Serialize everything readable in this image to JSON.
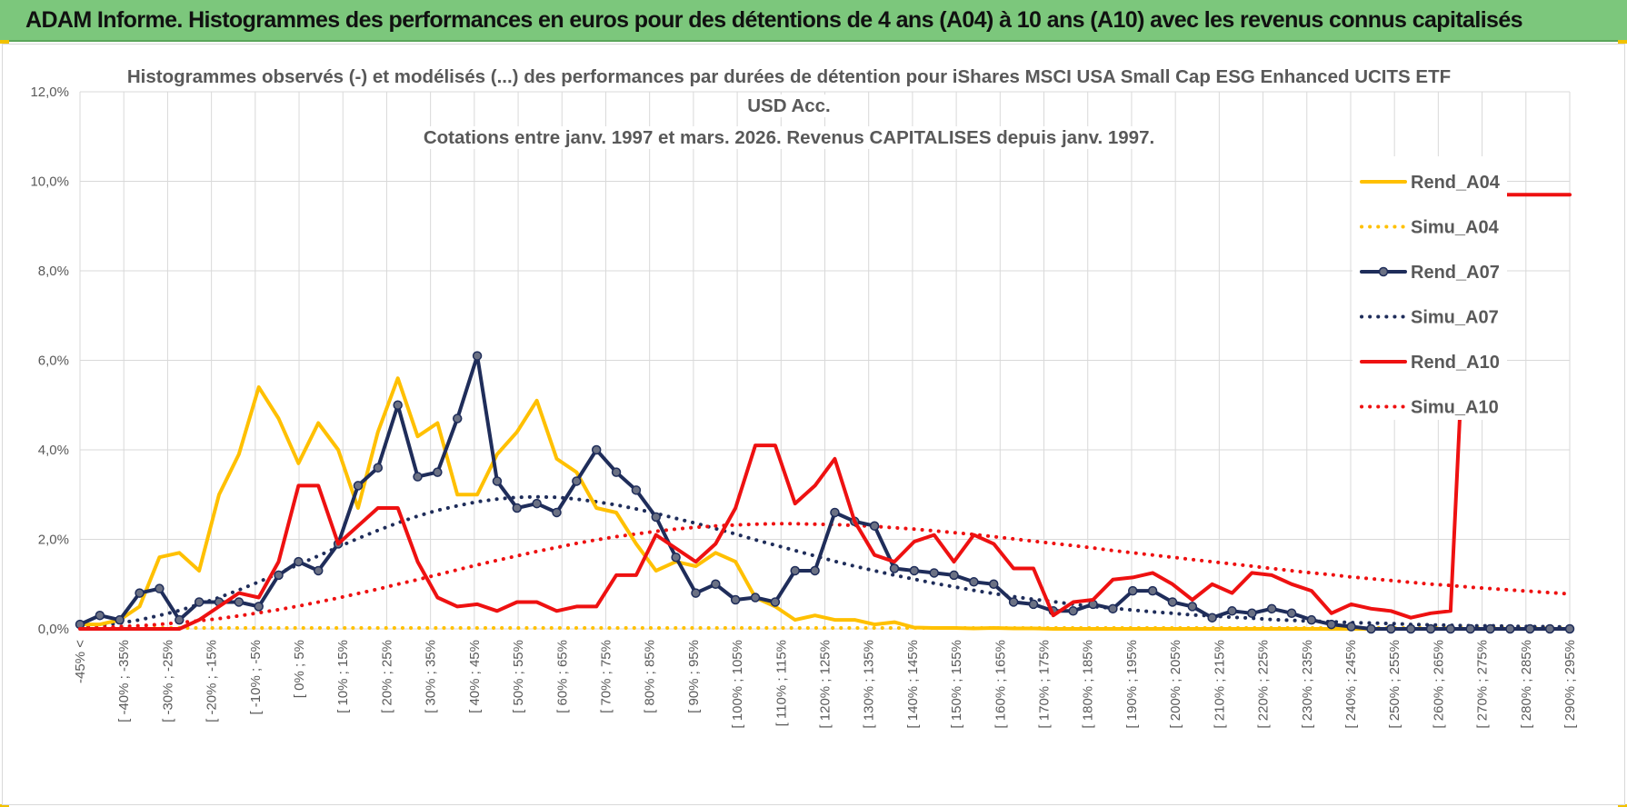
{
  "banner": {
    "title": "ADAM Informe. Histogrammes des performances en euros pour des détentions de 4 ans (A04) à 10 ans (A10) avec les revenus connus capitalisés"
  },
  "chart_data": {
    "type": "line",
    "title_lines": [
      "Histogrammes observés (-) et modélisés (...) des performances par durées de détention pour iShares MSCI USA Small Cap ESG Enhanced UCITS ETF",
      "USD Acc.",
      "Cotations entre janv. 1997 et mars. 2026. Revenus CAPITALISES depuis janv. 1997."
    ],
    "ylim": [
      0,
      12
    ],
    "y_ticks": [
      "0,0%",
      "2,0%",
      "4,0%",
      "6,0%",
      "8,0%",
      "10,0%",
      "12,0%"
    ],
    "grid": true,
    "legend_position": "right",
    "x_tick_labels": [
      "-45% <",
      "[ -40% ; -35%",
      "[ -30% ; -25%",
      "[ -20% ; -15%",
      "[ -10% ; -5%",
      "[ 0% ; 5%",
      "[ 10% ; 15%",
      "[ 20% ; 25%",
      "[ 30% ; 35%",
      "[ 40% ; 45%",
      "[ 50% ; 55%",
      "[ 60% ; 65%",
      "[ 70% ; 75%",
      "[ 80% ; 85%",
      "[ 90% ; 95%",
      "[ 100% ; 105%",
      "[ 110% ; 115%",
      "[ 120% ; 125%",
      "[ 130% ; 135%",
      "[ 140% ; 145%",
      "[ 150% ; 155%",
      "[ 160% ; 165%",
      "[ 170% ; 175%",
      "[ 180% ; 185%",
      "[ 190% ; 195%",
      "[ 200% ; 205%",
      "[ 210% ; 215%",
      "[ 220% ; 225%",
      "[ 230% ; 235%",
      "[ 240% ; 245%",
      "[ 250% ; 255%",
      "[ 260% ; 265%",
      "[ 270% ; 275%",
      "[ 280% ; 285%",
      "[ 290% ; 295%"
    ],
    "series": [
      {
        "name": "Rend_A04",
        "color": "#ffc000",
        "style": "solid",
        "markers": false,
        "values": [
          0.1,
          0.1,
          0.2,
          0.5,
          1.6,
          1.7,
          1.3,
          3.0,
          3.9,
          5.4,
          4.7,
          3.7,
          4.6,
          4.0,
          2.7,
          4.4,
          5.6,
          4.3,
          4.6,
          3.0,
          3.0,
          3.9,
          4.4,
          5.1,
          3.8,
          3.5,
          2.7,
          2.6,
          1.9,
          1.3,
          1.5,
          1.4,
          1.7,
          1.5,
          0.7,
          0.5,
          0.2,
          0.3,
          0.2,
          0.2,
          0.1,
          0.15,
          0.03,
          0.02,
          0.02,
          0.01,
          0.02,
          0.01,
          0.01,
          0,
          0,
          0,
          0,
          0,
          0,
          0,
          0,
          0,
          0,
          0,
          0,
          0,
          0,
          0,
          0,
          0,
          0,
          0,
          0,
          0,
          0,
          0,
          0,
          0,
          0,
          0
        ]
      },
      {
        "name": "Simu_A04",
        "color": "#ffc000",
        "style": "dotted",
        "markers": false,
        "values": [
          0.02,
          0.02,
          0.02,
          0.02,
          0.02,
          0.02,
          0.02,
          0.02,
          0.02,
          0.02,
          0.02,
          0.02,
          0.02,
          0.02,
          0.02,
          0.02,
          0.02,
          0.02,
          0.02,
          0.02,
          0.02,
          0.02,
          0.02,
          0.02,
          0.02,
          0.02,
          0.02,
          0.02,
          0.02,
          0.02,
          0.02,
          0.02,
          0.02,
          0.02,
          0.02,
          0.02,
          0.02,
          0.02,
          0.02,
          0.02,
          0.02,
          0.02,
          0.02,
          0.02,
          0.02,
          0.02,
          0.02,
          0.02,
          0.02,
          0.02,
          0.02,
          0.02,
          0.02,
          0.02,
          0.02,
          0.02,
          0.02,
          0.02,
          0.02,
          0.02,
          0.02,
          0.02,
          0.02,
          0.02,
          0.02,
          0.02,
          0.02,
          0.02,
          0.02,
          0.02,
          0.02,
          0.02,
          0.02,
          0.02,
          0.02,
          0.02
        ]
      },
      {
        "name": "Rend_A07",
        "color": "#1f2d5a",
        "style": "solid",
        "markers": true,
        "values": [
          0.1,
          0.3,
          0.2,
          0.8,
          0.9,
          0.2,
          0.6,
          0.6,
          0.6,
          0.5,
          1.2,
          1.5,
          1.3,
          1.9,
          3.2,
          3.6,
          5.0,
          3.4,
          3.5,
          4.7,
          6.1,
          3.3,
          2.7,
          2.8,
          2.6,
          3.3,
          4.0,
          3.5,
          3.1,
          2.5,
          1.6,
          0.8,
          1.0,
          0.65,
          0.7,
          0.6,
          1.3,
          1.3,
          2.6,
          2.4,
          2.3,
          1.35,
          1.3,
          1.25,
          1.2,
          1.05,
          1.0,
          0.6,
          0.55,
          0.4,
          0.4,
          0.55,
          0.45,
          0.85,
          0.85,
          0.6,
          0.5,
          0.25,
          0.4,
          0.35,
          0.45,
          0.35,
          0.2,
          0.1,
          0.05,
          0,
          0,
          0,
          0,
          0,
          0,
          0,
          0,
          0,
          0,
          0
        ]
      },
      {
        "name": "Simu_A07",
        "color": "#1f2d5a",
        "style": "dotted",
        "markers": false,
        "values": [
          0.05,
          0.08,
          0.13,
          0.2,
          0.3,
          0.41,
          0.55,
          0.7,
          0.87,
          1.05,
          1.24,
          1.44,
          1.63,
          1.83,
          2.02,
          2.2,
          2.37,
          2.52,
          2.65,
          2.75,
          2.84,
          2.9,
          2.94,
          2.95,
          2.94,
          2.9,
          2.84,
          2.77,
          2.68,
          2.58,
          2.47,
          2.36,
          2.24,
          2.12,
          1.99,
          1.87,
          1.75,
          1.63,
          1.51,
          1.4,
          1.3,
          1.2,
          1.11,
          1.02,
          0.94,
          0.86,
          0.79,
          0.72,
          0.66,
          0.61,
          0.55,
          0.5,
          0.46,
          0.42,
          0.38,
          0.35,
          0.31,
          0.29,
          0.26,
          0.24,
          0.21,
          0.19,
          0.17,
          0.16,
          0.14,
          0.13,
          0.12,
          0.1,
          0.09,
          0.08,
          0.07,
          0.07,
          0.06,
          0.05,
          0.05,
          0.04
        ]
      },
      {
        "name": "Rend_A10",
        "color": "#ee1111",
        "style": "solid",
        "markers": false,
        "values": [
          0,
          0,
          0,
          0,
          0,
          0,
          0.2,
          0.5,
          0.8,
          0.7,
          1.5,
          3.2,
          3.2,
          1.9,
          2.3,
          2.7,
          2.7,
          1.5,
          0.7,
          0.5,
          0.55,
          0.4,
          0.6,
          0.6,
          0.4,
          0.5,
          0.5,
          1.2,
          1.2,
          2.1,
          1.8,
          1.5,
          1.9,
          2.7,
          4.1,
          4.1,
          2.8,
          3.2,
          3.8,
          2.4,
          1.65,
          1.5,
          1.95,
          2.1,
          1.5,
          2.1,
          1.9,
          1.35,
          1.35,
          0.3,
          0.6,
          0.65,
          1.1,
          1.15,
          1.25,
          1.0,
          0.65,
          1.0,
          0.8,
          1.25,
          1.2,
          1.0,
          0.85,
          0.35,
          0.55,
          0.45,
          0.4,
          0.25,
          0.35,
          0.4,
          9.7,
          9.7,
          9.7,
          9.7,
          9.7,
          9.7
        ]
      },
      {
        "name": "Simu_A10",
        "color": "#ee1111",
        "style": "dotted",
        "markers": false,
        "values": [
          0.02,
          0.03,
          0.05,
          0.07,
          0.1,
          0.14,
          0.18,
          0.23,
          0.29,
          0.36,
          0.43,
          0.51,
          0.6,
          0.69,
          0.79,
          0.89,
          1.0,
          1.1,
          1.21,
          1.32,
          1.43,
          1.53,
          1.63,
          1.73,
          1.82,
          1.91,
          1.99,
          2.06,
          2.12,
          2.18,
          2.23,
          2.27,
          2.3,
          2.32,
          2.34,
          2.35,
          2.35,
          2.34,
          2.33,
          2.31,
          2.29,
          2.26,
          2.23,
          2.19,
          2.15,
          2.11,
          2.06,
          2.01,
          1.96,
          1.91,
          1.86,
          1.81,
          1.75,
          1.7,
          1.65,
          1.6,
          1.55,
          1.5,
          1.45,
          1.4,
          1.35,
          1.3,
          1.25,
          1.21,
          1.16,
          1.12,
          1.08,
          1.04,
          1.0,
          0.97,
          0.93,
          0.9,
          0.87,
          0.84,
          0.81,
          0.78
        ]
      }
    ]
  }
}
